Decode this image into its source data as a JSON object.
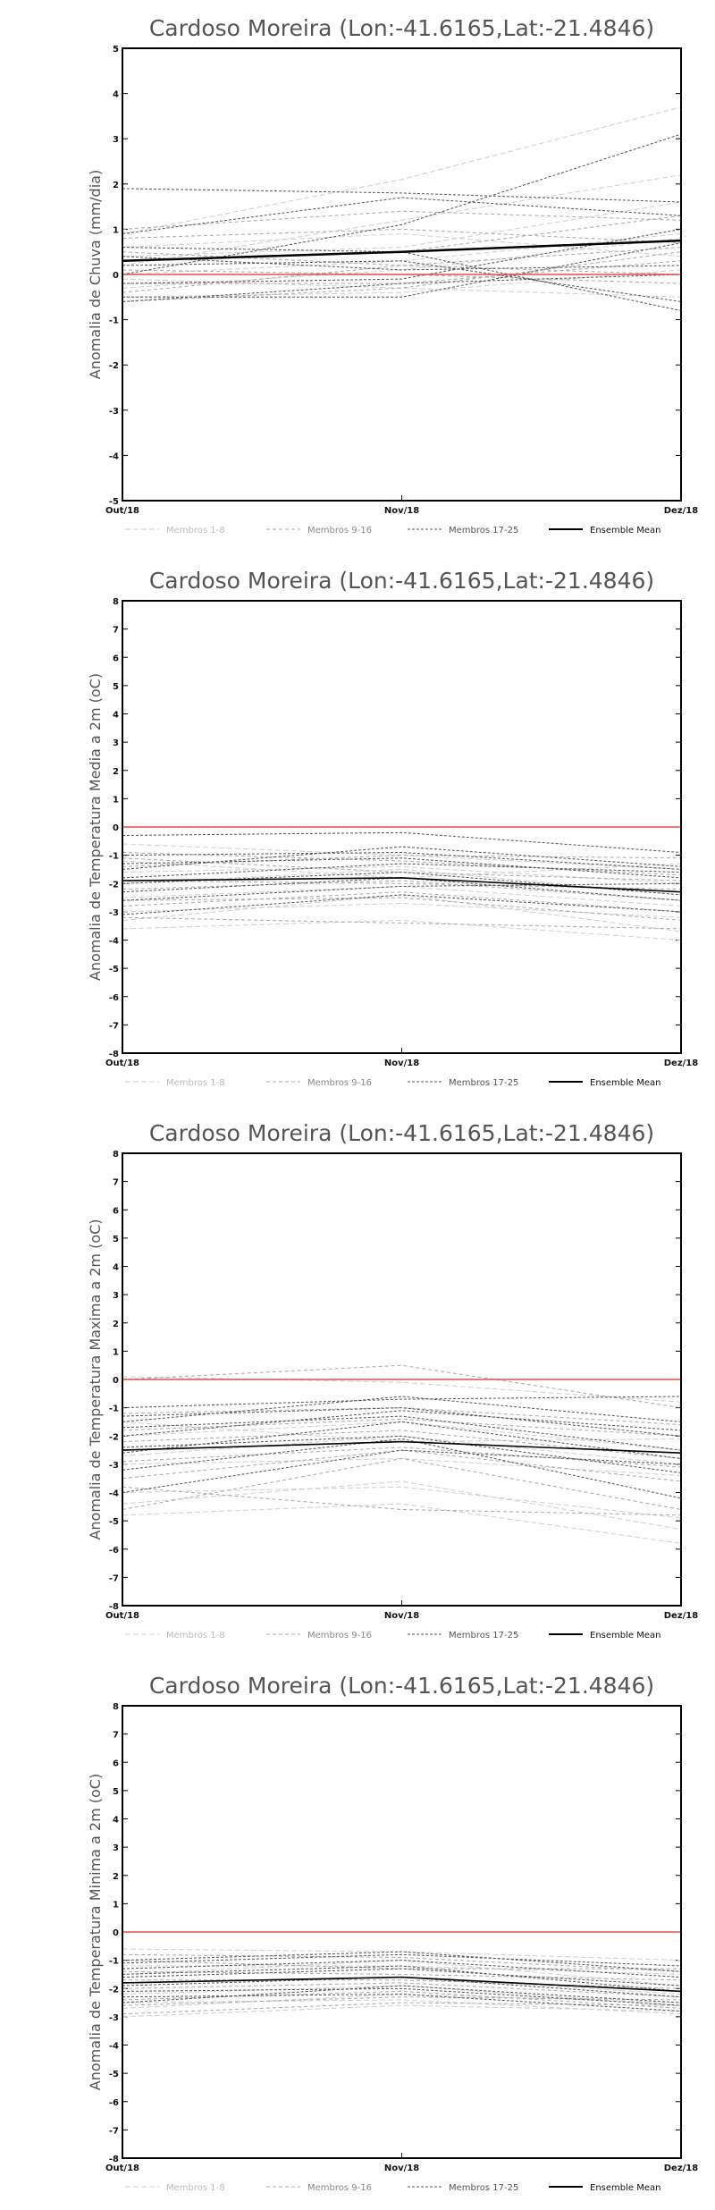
{
  "legend": [
    {
      "label": "Membros 1-8",
      "color": "#cfcfcf",
      "dash": "6,3",
      "width": 1
    },
    {
      "label": "Membros 9-16",
      "color": "#a8a8a8",
      "dash": "4,3",
      "width": 1
    },
    {
      "label": "Membros 17-25",
      "color": "#555555",
      "dash": "3,2",
      "width": 1
    },
    {
      "label": "Ensemble Mean",
      "color": "#000000",
      "dash": "",
      "width": 2
    }
  ],
  "chart_data": [
    {
      "type": "line",
      "title": "Cardoso Moreira (Lon:-41.6165,Lat:-21.4846)",
      "xlabel": "",
      "ylabel": "Anomalia de Chuva (mm/dia)",
      "categories": [
        "Out/18",
        "Nov/18",
        "Dez/18"
      ],
      "ylim": [
        -5,
        5
      ],
      "yticks": [
        -5,
        -4,
        -3,
        -2,
        -1,
        0,
        1,
        2,
        3,
        4,
        5
      ],
      "reference_line": {
        "value": 0,
        "color": "#e05050"
      },
      "series": [
        {
          "group": "Membros 1-8",
          "values": [
            0.9,
            2.1,
            3.7
          ]
        },
        {
          "group": "Membros 1-8",
          "values": [
            0.2,
            1.2,
            2.2
          ]
        },
        {
          "group": "Membros 1-8",
          "values": [
            -0.3,
            0.1,
            0.8
          ]
        },
        {
          "group": "Membros 1-8",
          "values": [
            0.6,
            0.9,
            0.4
          ]
        },
        {
          "group": "Membros 1-8",
          "values": [
            -0.5,
            -0.4,
            0.1
          ]
        },
        {
          "group": "Membros 1-8",
          "values": [
            0.4,
            0.6,
            1.6
          ]
        },
        {
          "group": "Membros 1-8",
          "values": [
            -0.1,
            -0.3,
            -0.5
          ]
        },
        {
          "group": "Membros 1-8",
          "values": [
            0.0,
            0.3,
            0.9
          ]
        },
        {
          "group": "Membros 9-16",
          "values": [
            1.0,
            1.4,
            1.2
          ]
        },
        {
          "group": "Membros 9-16",
          "values": [
            0.3,
            0.5,
            1.3
          ]
        },
        {
          "group": "Membros 9-16",
          "values": [
            -0.2,
            -0.2,
            0.3
          ]
        },
        {
          "group": "Membros 9-16",
          "values": [
            0.5,
            0.2,
            0.0
          ]
        },
        {
          "group": "Membros 9-16",
          "values": [
            -0.6,
            -0.3,
            0.5
          ]
        },
        {
          "group": "Membros 9-16",
          "values": [
            0.8,
            1.0,
            0.7
          ]
        },
        {
          "group": "Membros 9-16",
          "values": [
            0.1,
            0.0,
            -0.2
          ]
        },
        {
          "group": "Membros 9-16",
          "values": [
            -0.4,
            0.2,
            0.6
          ]
        },
        {
          "group": "Membros 17-25",
          "values": [
            1.9,
            1.8,
            1.6
          ]
        },
        {
          "group": "Membros 17-25",
          "values": [
            0.0,
            1.1,
            3.1
          ]
        },
        {
          "group": "Membros 17-25",
          "values": [
            0.9,
            1.7,
            1.3
          ]
        },
        {
          "group": "Membros 17-25",
          "values": [
            -0.5,
            -0.5,
            0.7
          ]
        },
        {
          "group": "Membros 17-25",
          "values": [
            0.6,
            0.5,
            -0.8
          ]
        },
        {
          "group": "Membros 17-25",
          "values": [
            -0.6,
            -0.2,
            0.0
          ]
        },
        {
          "group": "Membros 17-25",
          "values": [
            0.2,
            0.3,
            -0.6
          ]
        },
        {
          "group": "Membros 17-25",
          "values": [
            0.4,
            0.1,
            0.2
          ]
        },
        {
          "group": "Membros 17-25",
          "values": [
            -0.2,
            -0.1,
            1.0
          ]
        },
        {
          "group": "Ensemble Mean",
          "values": [
            0.3,
            0.5,
            0.75
          ]
        }
      ]
    },
    {
      "type": "line",
      "title": "Cardoso Moreira (Lon:-41.6165,Lat:-21.4846)",
      "xlabel": "",
      "ylabel": "Anomalia de Temperatura Media a 2m (oC)",
      "categories": [
        "Out/18",
        "Nov/18",
        "Dez/18"
      ],
      "ylim": [
        -8,
        8
      ],
      "yticks": [
        -8,
        -7,
        -6,
        -5,
        -4,
        -3,
        -2,
        -1,
        0,
        1,
        2,
        3,
        4,
        5,
        6,
        7,
        8
      ],
      "reference_line": {
        "value": 0,
        "color": "#e05050"
      },
      "series": [
        {
          "group": "Membros 1-8",
          "values": [
            -3.6,
            -3.3,
            -4.0
          ]
        },
        {
          "group": "Membros 1-8",
          "values": [
            -3.3,
            -2.4,
            -3.7
          ]
        },
        {
          "group": "Membros 1-8",
          "values": [
            -0.6,
            -1.0,
            -1.5
          ]
        },
        {
          "group": "Membros 1-8",
          "values": [
            -2.0,
            -1.5,
            -2.4
          ]
        },
        {
          "group": "Membros 1-8",
          "values": [
            -3.0,
            -2.7,
            -3.2
          ]
        },
        {
          "group": "Membros 1-8",
          "values": [
            -1.2,
            -1.8,
            -1.3
          ]
        },
        {
          "group": "Membros 1-8",
          "values": [
            -2.5,
            -2.1,
            -2.8
          ]
        },
        {
          "group": "Membros 1-8",
          "values": [
            -1.6,
            -1.4,
            -2.0
          ]
        },
        {
          "group": "Membros 9-16",
          "values": [
            -3.2,
            -3.4,
            -3.6
          ]
        },
        {
          "group": "Membros 9-16",
          "values": [
            -2.2,
            -1.9,
            -2.6
          ]
        },
        {
          "group": "Membros 9-16",
          "values": [
            -0.9,
            -1.2,
            -1.7
          ]
        },
        {
          "group": "Membros 9-16",
          "values": [
            -1.4,
            -1.0,
            -1.1
          ]
        },
        {
          "group": "Membros 9-16",
          "values": [
            -2.8,
            -2.3,
            -3.0
          ]
        },
        {
          "group": "Membros 9-16",
          "values": [
            -1.9,
            -2.0,
            -2.2
          ]
        },
        {
          "group": "Membros 9-16",
          "values": [
            -2.6,
            -2.5,
            -3.3
          ]
        },
        {
          "group": "Membros 9-16",
          "values": [
            -1.1,
            -1.6,
            -1.9
          ]
        },
        {
          "group": "Membros 17-25",
          "values": [
            -0.3,
            -0.2,
            -0.9
          ]
        },
        {
          "group": "Membros 17-25",
          "values": [
            -1.0,
            -0.9,
            -1.5
          ]
        },
        {
          "group": "Membros 17-25",
          "values": [
            -1.5,
            -0.7,
            -1.4
          ]
        },
        {
          "group": "Membros 17-25",
          "values": [
            -1.8,
            -1.3,
            -1.6
          ]
        },
        {
          "group": "Membros 17-25",
          "values": [
            -2.6,
            -2.1,
            -2.0
          ]
        },
        {
          "group": "Membros 17-25",
          "values": [
            -3.1,
            -2.4,
            -3.0
          ]
        },
        {
          "group": "Membros 17-25",
          "values": [
            -2.3,
            -1.8,
            -2.6
          ]
        },
        {
          "group": "Membros 17-25",
          "values": [
            -1.3,
            -1.1,
            -1.8
          ]
        },
        {
          "group": "Membros 17-25",
          "values": [
            -2.0,
            -1.6,
            -2.4
          ]
        },
        {
          "group": "Ensemble Mean",
          "values": [
            -1.9,
            -1.8,
            -2.3
          ]
        }
      ]
    },
    {
      "type": "line",
      "title": "Cardoso Moreira (Lon:-41.6165,Lat:-21.4846)",
      "xlabel": "",
      "ylabel": "Anomalia de Temperatura Maxima a 2m (oC)",
      "categories": [
        "Out/18",
        "Nov/18",
        "Dez/18"
      ],
      "ylim": [
        -8,
        8
      ],
      "yticks": [
        -8,
        -7,
        -6,
        -5,
        -4,
        -3,
        -2,
        -1,
        0,
        1,
        2,
        3,
        4,
        5,
        6,
        7,
        8
      ],
      "reference_line": {
        "value": 0,
        "color": "#e05050"
      },
      "series": [
        {
          "group": "Membros 1-8",
          "values": [
            -4.8,
            -4.4,
            -5.8
          ]
        },
        {
          "group": "Membros 1-8",
          "values": [
            -4.4,
            -3.6,
            -5.3
          ]
        },
        {
          "group": "Membros 1-8",
          "values": [
            0.1,
            -0.1,
            -0.8
          ]
        },
        {
          "group": "Membros 1-8",
          "values": [
            -4.0,
            -3.8,
            -4.9
          ]
        },
        {
          "group": "Membros 1-8",
          "values": [
            -2.0,
            -1.5,
            -2.5
          ]
        },
        {
          "group": "Membros 1-8",
          "values": [
            -3.0,
            -2.8,
            -3.4
          ]
        },
        {
          "group": "Membros 1-8",
          "values": [
            -1.5,
            -2.2,
            -2.1
          ]
        },
        {
          "group": "Membros 1-8",
          "values": [
            -2.7,
            -2.0,
            -3.0
          ]
        },
        {
          "group": "Membros 9-16",
          "values": [
            -4.6,
            -2.8,
            -4.6
          ]
        },
        {
          "group": "Membros 9-16",
          "values": [
            -3.8,
            -4.6,
            -4.8
          ]
        },
        {
          "group": "Membros 9-16",
          "values": [
            0.0,
            0.5,
            -1.0
          ]
        },
        {
          "group": "Membros 9-16",
          "values": [
            -2.2,
            -1.8,
            -2.8
          ]
        },
        {
          "group": "Membros 9-16",
          "values": [
            -3.5,
            -2.5,
            -3.6
          ]
        },
        {
          "group": "Membros 9-16",
          "values": [
            -1.8,
            -1.4,
            -2.0
          ]
        },
        {
          "group": "Membros 9-16",
          "values": [
            -2.9,
            -2.4,
            -3.1
          ]
        },
        {
          "group": "Membros 9-16",
          "values": [
            -1.2,
            -1.0,
            -1.6
          ]
        },
        {
          "group": "Membros 17-25",
          "values": [
            -1.0,
            -0.7,
            -0.6
          ]
        },
        {
          "group": "Membros 17-25",
          "values": [
            -1.5,
            -0.6,
            -1.5
          ]
        },
        {
          "group": "Membros 17-25",
          "values": [
            -2.0,
            -1.1,
            -1.8
          ]
        },
        {
          "group": "Membros 17-25",
          "values": [
            -2.6,
            -1.5,
            -2.8
          ]
        },
        {
          "group": "Membros 17-25",
          "values": [
            -3.2,
            -2.1,
            -4.2
          ]
        },
        {
          "group": "Membros 17-25",
          "values": [
            -4.0,
            -2.5,
            -3.0
          ]
        },
        {
          "group": "Membros 17-25",
          "values": [
            -1.7,
            -1.3,
            -2.5
          ]
        },
        {
          "group": "Membros 17-25",
          "values": [
            -2.4,
            -2.0,
            -3.3
          ]
        },
        {
          "group": "Membros 17-25",
          "values": [
            -1.3,
            -1.0,
            -2.0
          ]
        },
        {
          "group": "Ensemble Mean",
          "values": [
            -2.5,
            -2.2,
            -2.6
          ]
        }
      ]
    },
    {
      "type": "line",
      "title": "Cardoso Moreira (Lon:-41.6165,Lat:-21.4846)",
      "xlabel": "",
      "ylabel": "Anomalia de Temperatura Minima a 2m (oC)",
      "categories": [
        "Out/18",
        "Nov/18",
        "Dez/18"
      ],
      "ylim": [
        -8,
        8
      ],
      "yticks": [
        -8,
        -7,
        -6,
        -5,
        -4,
        -3,
        -2,
        -1,
        0,
        1,
        2,
        3,
        4,
        5,
        6,
        7,
        8
      ],
      "reference_line": {
        "value": 0,
        "color": "#e05050"
      },
      "series": [
        {
          "group": "Membros 1-8",
          "values": [
            -3.0,
            -2.6,
            -2.8
          ]
        },
        {
          "group": "Membros 1-8",
          "values": [
            -2.7,
            -2.2,
            -2.5
          ]
        },
        {
          "group": "Membros 1-8",
          "values": [
            -0.6,
            -0.7,
            -1.0
          ]
        },
        {
          "group": "Membros 1-8",
          "values": [
            -1.8,
            -1.6,
            -2.2
          ]
        },
        {
          "group": "Membros 1-8",
          "values": [
            -2.2,
            -1.9,
            -2.6
          ]
        },
        {
          "group": "Membros 1-8",
          "values": [
            -1.2,
            -1.2,
            -1.5
          ]
        },
        {
          "group": "Membros 1-8",
          "values": [
            -2.5,
            -2.4,
            -2.9
          ]
        },
        {
          "group": "Membros 1-8",
          "values": [
            -1.5,
            -1.0,
            -1.9
          ]
        },
        {
          "group": "Membros 9-16",
          "values": [
            -2.9,
            -2.5,
            -2.6
          ]
        },
        {
          "group": "Membros 9-16",
          "values": [
            -2.0,
            -1.8,
            -2.3
          ]
        },
        {
          "group": "Membros 9-16",
          "values": [
            -0.8,
            -0.9,
            -1.4
          ]
        },
        {
          "group": "Membros 9-16",
          "values": [
            -1.4,
            -1.5,
            -1.7
          ]
        },
        {
          "group": "Membros 9-16",
          "values": [
            -2.4,
            -2.1,
            -2.7
          ]
        },
        {
          "group": "Membros 9-16",
          "values": [
            -1.0,
            -1.3,
            -1.3
          ]
        },
        {
          "group": "Membros 9-16",
          "values": [
            -1.7,
            -1.7,
            -2.0
          ]
        },
        {
          "group": "Membros 9-16",
          "values": [
            -2.6,
            -2.3,
            -2.4
          ]
        },
        {
          "group": "Membros 17-25",
          "values": [
            -1.1,
            -0.8,
            -1.2
          ]
        },
        {
          "group": "Membros 17-25",
          "values": [
            -1.3,
            -1.0,
            -1.6
          ]
        },
        {
          "group": "Membros 17-25",
          "values": [
            -1.6,
            -1.3,
            -1.9
          ]
        },
        {
          "group": "Membros 17-25",
          "values": [
            -1.9,
            -1.6,
            -2.3
          ]
        },
        {
          "group": "Membros 17-25",
          "values": [
            -2.1,
            -2.0,
            -2.6
          ]
        },
        {
          "group": "Membros 17-25",
          "values": [
            -2.3,
            -2.2,
            -2.8
          ]
        },
        {
          "group": "Membros 17-25",
          "values": [
            -1.5,
            -1.2,
            -2.1
          ]
        },
        {
          "group": "Membros 17-25",
          "values": [
            -1.0,
            -0.7,
            -1.4
          ]
        },
        {
          "group": "Membros 17-25",
          "values": [
            -2.5,
            -1.9,
            -2.5
          ]
        },
        {
          "group": "Ensemble Mean",
          "values": [
            -1.8,
            -1.6,
            -2.1
          ]
        }
      ]
    }
  ]
}
